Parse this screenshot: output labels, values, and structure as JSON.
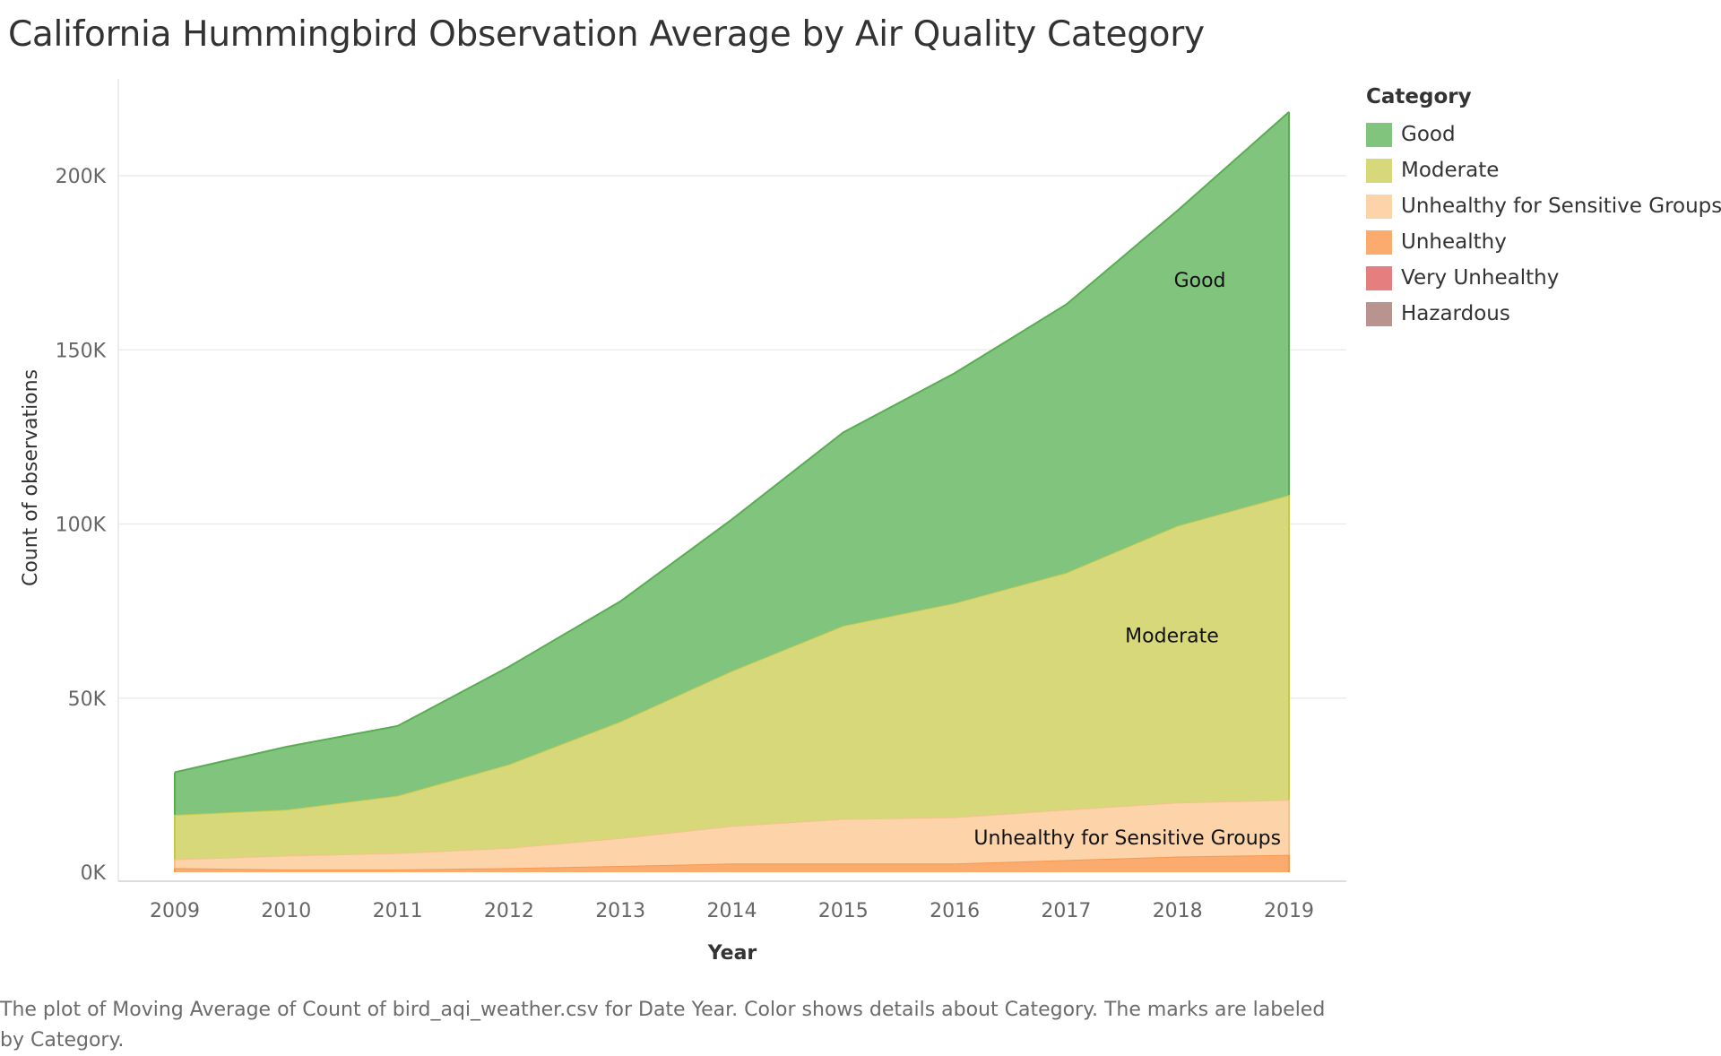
{
  "page": {
    "caption": "The plot of Moving Average of Count of bird_aqi_weather.csv for Date Year.  Color shows details about Category.  The marks are labeled by Category."
  },
  "legend": {
    "title": "Category"
  },
  "chart_data": {
    "type": "area",
    "stacked": true,
    "title": "California Hummingbird Observation Average by Air Quality Category",
    "xlabel": "Year",
    "ylabel": "Count of observations",
    "x": [
      "2009",
      "2010",
      "2011",
      "2012",
      "2013",
      "2014",
      "2015",
      "2016",
      "2017",
      "2018",
      "2019"
    ],
    "ylim": [
      0,
      225000
    ],
    "yticks": [
      {
        "value": 0,
        "label": "0K"
      },
      {
        "value": 50000,
        "label": "50K"
      },
      {
        "value": 100000,
        "label": "100K"
      },
      {
        "value": 150000,
        "label": "150K"
      },
      {
        "value": 200000,
        "label": "200K"
      }
    ],
    "grid": "horizontal",
    "legend_position": "right",
    "series": [
      {
        "name": "Hazardous",
        "color": "#b9948f",
        "values": [
          0,
          0,
          0,
          0,
          0,
          0,
          0,
          0,
          0,
          0,
          0
        ]
      },
      {
        "name": "Very Unhealthy",
        "color": "#e57f7f",
        "values": [
          0,
          0,
          0,
          0,
          0,
          0,
          0,
          0,
          0,
          0,
          0
        ]
      },
      {
        "name": "Unhealthy",
        "color": "#fcab6e",
        "values": [
          1200,
          800,
          800,
          1200,
          1800,
          2500,
          2500,
          2500,
          3500,
          4500,
          5000
        ]
      },
      {
        "name": "Unhealthy for Sensitive Groups",
        "color": "#fdd3aa",
        "values": [
          2500,
          4000,
          4700,
          5800,
          8000,
          10800,
          12800,
          13300,
          14500,
          15500,
          15800
        ]
      },
      {
        "name": "Moderate",
        "color": "#d6d879",
        "values": [
          12800,
          13200,
          16500,
          24000,
          33500,
          44500,
          55500,
          61500,
          68000,
          79500,
          87500
        ]
      },
      {
        "name": "Good",
        "color": "#80c47e",
        "values": [
          12200,
          18000,
          20000,
          28000,
          34500,
          43500,
          55500,
          66000,
          77000,
          90500,
          110000
        ]
      }
    ],
    "labels": [
      {
        "series": "Good",
        "text": "Good"
      },
      {
        "series": "Moderate",
        "text": "Moderate"
      },
      {
        "series": "Unhealthy for Sensitive Groups",
        "text": "Unhealthy for Sensitive Groups"
      }
    ]
  }
}
